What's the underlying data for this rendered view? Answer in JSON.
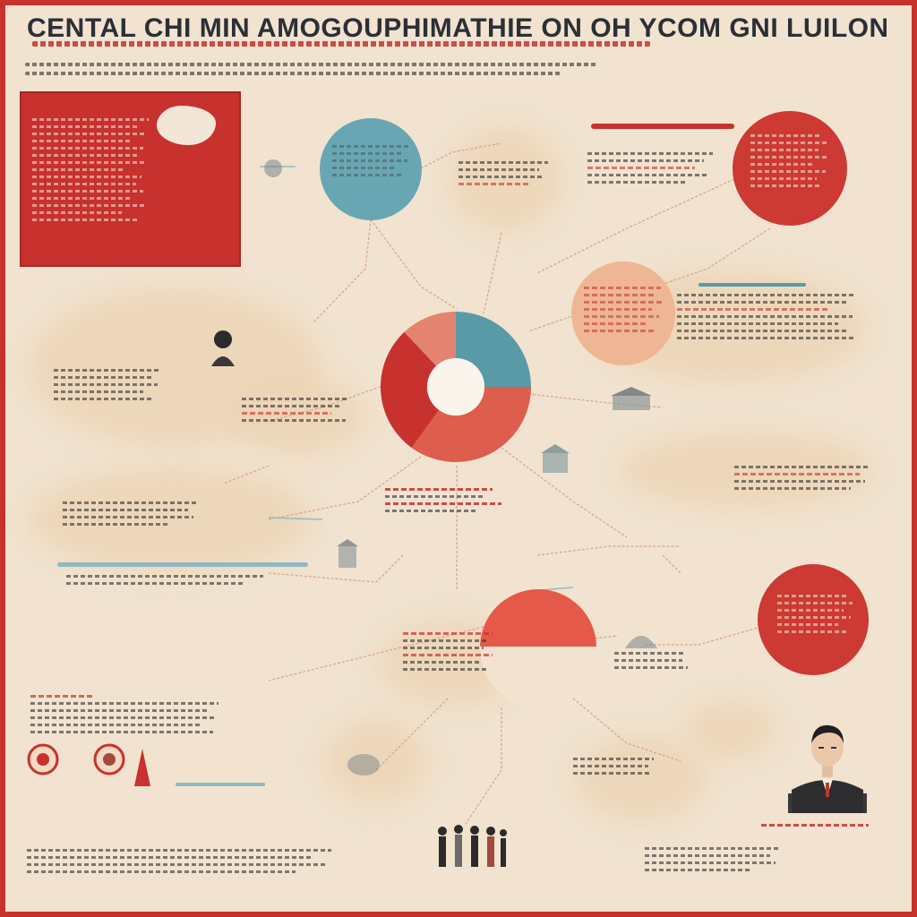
{
  "poster": {
    "title": "CENTAL CHI MIN AMOGOUPHIMATHIE ON OH YCOM GNI LUILON",
    "accent_red": "#c7322e",
    "accent_teal": "#5a9aa6",
    "accent_peach": "#e8a27a",
    "background": "#f1e3d0"
  },
  "donut_chart": {
    "segments": [
      {
        "color": "#5a9aa6",
        "value": 25
      },
      {
        "color": "#de5e4e",
        "value": 35
      },
      {
        "color": "#c7322e",
        "value": 28
      },
      {
        "color": "#e28470",
        "value": 12
      }
    ]
  },
  "icons": [
    "map-icon",
    "portrait-icon",
    "group-photo-icon",
    "seal-icon",
    "building-icon"
  ]
}
